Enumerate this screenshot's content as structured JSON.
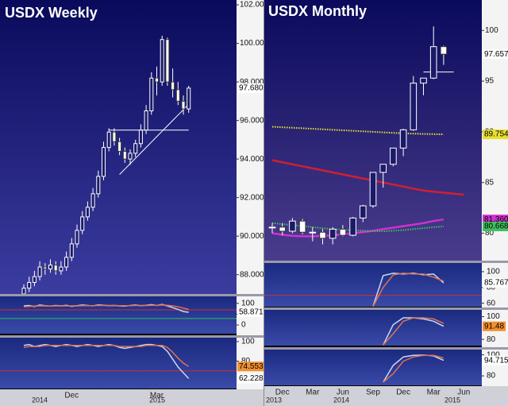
{
  "chart_data": [
    {
      "type": "candlestick",
      "title": "USDX Weekly",
      "categories": [
        null,
        null,
        null,
        null,
        null,
        null,
        null,
        null,
        null,
        "Dec",
        null,
        null,
        null,
        null,
        null,
        null,
        null,
        null,
        null,
        null,
        null,
        null,
        null,
        null,
        null,
        "Mar",
        null,
        null,
        null,
        null,
        null,
        null
      ],
      "years": [
        "2014",
        "2015"
      ],
      "open": [
        87.0,
        87.3,
        87.6,
        87.9,
        88.4,
        88.3,
        88.5,
        88.2,
        88.4,
        88.9,
        89.6,
        90.3,
        91.0,
        91.5,
        92.2,
        93.1,
        94.6,
        95.4,
        94.9,
        94.4,
        94.0,
        94.3,
        94.8,
        95.5,
        96.5,
        98.2,
        98.0,
        100.2,
        98.0,
        97.6,
        97.0,
        96.6
      ],
      "high": [
        87.5,
        87.9,
        88.2,
        88.7,
        88.6,
        88.8,
        88.7,
        88.7,
        89.2,
        89.9,
        90.6,
        91.3,
        91.8,
        92.5,
        93.4,
        94.9,
        95.6,
        95.6,
        95.1,
        94.6,
        94.5,
        95.0,
        95.8,
        96.8,
        98.5,
        98.8,
        100.4,
        100.3,
        98.7,
        98.0,
        97.3,
        97.8
      ],
      "low": [
        86.8,
        87.1,
        87.4,
        87.7,
        88.0,
        88.1,
        88.0,
        88.0,
        88.2,
        88.7,
        89.4,
        90.1,
        90.8,
        91.3,
        92.0,
        92.9,
        94.4,
        94.7,
        94.2,
        93.8,
        93.7,
        94.1,
        94.6,
        95.3,
        96.3,
        97.3,
        97.8,
        97.8,
        97.2,
        96.8,
        96.3,
        96.4
      ],
      "close": [
        87.3,
        87.6,
        87.9,
        88.4,
        88.3,
        88.5,
        88.2,
        88.4,
        88.9,
        89.6,
        90.3,
        91.0,
        91.5,
        92.2,
        93.1,
        94.6,
        95.4,
        94.9,
        94.4,
        94.0,
        94.3,
        94.8,
        95.5,
        96.5,
        98.2,
        98.0,
        100.2,
        98.0,
        97.6,
        97.0,
        96.6,
        97.68
      ],
      "last_label": "97.680",
      "ylim": [
        87,
        102.25
      ],
      "yticks": [
        {
          "value": 88,
          "label": "88.000"
        },
        {
          "value": 90,
          "label": "90.000"
        },
        {
          "value": 92,
          "label": "92.000"
        },
        {
          "value": 94,
          "label": "94.000"
        },
        {
          "value": 96,
          "label": "96.000"
        },
        {
          "value": 98,
          "label": "98.000"
        },
        {
          "value": 100,
          "label": "100.000"
        },
        {
          "value": 102,
          "label": "102.000"
        }
      ],
      "overlays": [
        {
          "color": "#ffffff",
          "style": "solid",
          "values": [
            null,
            null,
            null,
            null,
            null,
            null,
            null,
            null,
            null,
            null,
            null,
            null,
            null,
            null,
            null,
            null,
            95.5,
            95.5,
            95.5,
            95.5,
            95.5,
            95.5,
            95.5,
            95.5,
            95.5,
            95.5,
            95.5,
            95.5,
            95.5,
            95.5,
            95.5,
            95.5
          ]
        },
        {
          "color": "#ffffff",
          "style": "solid",
          "values": [
            null,
            null,
            null,
            null,
            null,
            null,
            null,
            null,
            null,
            null,
            null,
            null,
            null,
            null,
            null,
            null,
            null,
            null,
            93.2,
            93.48,
            93.76,
            94.04,
            94.32,
            94.6,
            94.88,
            95.16,
            95.44,
            95.72,
            96.0,
            96.28,
            96.56,
            96.84
          ]
        }
      ],
      "indicators": [
        {
          "ylim": [
            -40,
            132
          ],
          "yticks": [
            100,
            50,
            0
          ],
          "hlines": [
            {
              "value": 70,
              "color": "#d03030"
            },
            {
              "value": 30,
              "color": "#30c060"
            }
          ],
          "series": [
            {
              "color": "#c8d8f0",
              "values": [
                88,
                90,
                85,
                92,
                89,
                87,
                90,
                88,
                91,
                86,
                89,
                92,
                90,
                88,
                93,
                91,
                89,
                90,
                88,
                87,
                90,
                92,
                89,
                91,
                94,
                90,
                95,
                88,
                80,
                72,
                62,
                58.871
              ],
              "last_label": "58.871",
              "label_color": "#ffffff"
            },
            {
              "color": "#e07050",
              "values": [
                84,
                86,
                87,
                88,
                88,
                87,
                88,
                88,
                88,
                88,
                88,
                89,
                89,
                89,
                90,
                90,
                90,
                90,
                89,
                89,
                89,
                90,
                90,
                90,
                91,
                91,
                92,
                91,
                88,
                84,
                78,
                72
              ]
            }
          ]
        },
        {
          "ylim": [
            52,
            104
          ],
          "yticks": [
            100,
            80
          ],
          "hlines": [
            {
              "value": 70,
              "color": "#d03030"
            }
          ],
          "series": [
            {
              "color": "#c8d8f0",
              "values": [
                96,
                97,
                95,
                96,
                97,
                96,
                95,
                96,
                97,
                96,
                95,
                96,
                97,
                96,
                95,
                96,
                97,
                96,
                94,
                93,
                94,
                95,
                96,
                97,
                97,
                96,
                95,
                90,
                82,
                74,
                68,
                62.2285
              ],
              "last_label": "62.2285",
              "label_color": "#ffffff"
            },
            {
              "color": "#e07050",
              "values": [
                94,
                95,
                95,
                95,
                96,
                96,
                96,
                96,
                96,
                96,
                96,
                96,
                96,
                96,
                96,
                96,
                96,
                96,
                95,
                95,
                95,
                95,
                95,
                96,
                96,
                96,
                96,
                94,
                89,
                83,
                78,
                74.5532
              ],
              "last_label": "74.5532",
              "label_color": "#f09030"
            }
          ]
        }
      ]
    },
    {
      "type": "candlestick",
      "title": "USDX Monthly",
      "categories": [
        null,
        "Dec",
        null,
        null,
        "Mar",
        null,
        null,
        "Jun",
        null,
        null,
        "Sep",
        null,
        null,
        "Dec",
        null,
        null,
        "Mar",
        null,
        null,
        "Jun"
      ],
      "years": [
        "2013",
        "2014",
        "2015"
      ],
      "open": [
        80.6,
        80.6,
        80.2,
        81.2,
        80.1,
        80.1,
        79.5,
        80.4,
        79.8,
        81.5,
        82.7,
        86.0,
        86.8,
        88.4,
        90.2,
        94.8,
        95.3,
        98.4,
        null,
        null
      ],
      "high": [
        81.0,
        81.0,
        81.5,
        81.4,
        80.6,
        80.4,
        80.6,
        80.8,
        81.6,
        82.8,
        86.0,
        86.8,
        88.4,
        90.3,
        95.5,
        95.3,
        100.4,
        98.5,
        null,
        null
      ],
      "low": [
        80.0,
        79.8,
        80.0,
        79.9,
        79.2,
        78.9,
        78.9,
        79.7,
        79.7,
        81.1,
        82.5,
        84.5,
        86.6,
        87.6,
        90.1,
        93.6,
        95.2,
        96.6,
        null,
        null
      ],
      "close": [
        80.6,
        80.2,
        81.2,
        80.1,
        80.1,
        79.5,
        80.4,
        79.8,
        81.5,
        82.7,
        86.0,
        86.8,
        88.4,
        90.2,
        94.8,
        95.3,
        98.4,
        97.657,
        null,
        null
      ],
      "last_label": "97.657",
      "ylim": [
        77.3,
        103
      ],
      "yticks": [
        80,
        85,
        90,
        95,
        100
      ],
      "overlays": [
        {
          "color": "#e8e030",
          "style": "dotted",
          "values": [
            90.5,
            90.45,
            90.4,
            90.35,
            90.3,
            90.25,
            90.2,
            90.15,
            90.1,
            90.05,
            90.0,
            89.95,
            89.9,
            89.85,
            89.82,
            89.79,
            89.77,
            89.754,
            null,
            null
          ],
          "last_label": "89.754"
        },
        {
          "color": "#d02030",
          "style": "solid",
          "values": [
            87.2,
            87.0,
            86.8,
            86.6,
            86.4,
            86.2,
            86.0,
            85.8,
            85.6,
            85.4,
            85.2,
            85.0,
            84.8,
            84.6,
            84.4,
            84.2,
            84.1,
            84.0,
            83.9,
            83.8
          ]
        },
        {
          "color": "#d030d0",
          "style": "solid",
          "values": [
            80.0,
            79.85,
            79.75,
            79.7,
            79.7,
            79.75,
            79.8,
            79.9,
            80.0,
            80.1,
            80.25,
            80.4,
            80.55,
            80.7,
            80.85,
            81.0,
            81.2,
            81.36,
            null,
            null
          ],
          "last_label": "81.360"
        },
        {
          "color": "#40c060",
          "style": "dotted",
          "values": [
            81.0,
            80.9,
            80.8,
            80.7,
            80.6,
            80.5,
            80.4,
            80.35,
            80.3,
            80.25,
            80.2,
            80.2,
            80.25,
            80.3,
            80.4,
            80.5,
            80.6,
            80.668,
            null,
            null
          ],
          "last_label": "80.668"
        },
        {
          "color": "#ffffff",
          "style": "solid",
          "values": [
            null,
            null,
            null,
            null,
            null,
            null,
            null,
            null,
            null,
            null,
            null,
            null,
            null,
            null,
            null,
            95.9,
            95.9,
            95.9,
            95.9,
            null
          ]
        }
      ],
      "indicators": [
        {
          "ylim": [
            55.6,
            111
          ],
          "yticks": [
            100,
            80,
            60
          ],
          "hlines": [
            {
              "value": 70,
              "color": "#d03030"
            }
          ],
          "series": [
            {
              "color": "#c8d8f0",
              "values": [
                null,
                null,
                null,
                null,
                null,
                null,
                null,
                null,
                null,
                null,
                56,
                95,
                98,
                97,
                98,
                96,
                97,
                85.767,
                null,
                null
              ],
              "last_label": "85.767",
              "label_color": "#ffffff"
            },
            {
              "color": "#e07050",
              "values": [
                null,
                null,
                null,
                null,
                null,
                null,
                null,
                null,
                null,
                null,
                56,
                80,
                96,
                98,
                97,
                97,
                93,
                88,
                null,
                null
              ]
            }
          ]
        },
        {
          "ylim": [
            74.5,
            106
          ],
          "yticks": [
            100,
            80
          ],
          "hlines": [],
          "series": [
            {
              "color": "#c8d8f0",
              "values": [
                null,
                null,
                null,
                null,
                null,
                null,
                null,
                null,
                null,
                null,
                null,
                75,
                93,
                99,
                99,
                98,
                96,
                91.48,
                null,
                null
              ],
              "last_label": "91.48",
              "label_color": "#f09030"
            },
            {
              "color": "#e07050",
              "values": [
                null,
                null,
                null,
                null,
                null,
                null,
                null,
                null,
                null,
                null,
                null,
                75,
                85,
                96,
                99,
                99,
                98,
                94,
                null,
                null
              ]
            }
          ]
        },
        {
          "ylim": [
            71,
            105
          ],
          "yticks": [
            100,
            80
          ],
          "hlines": [],
          "series": [
            {
              "color": "#c8d8f0",
              "values": [
                null,
                null,
                null,
                null,
                null,
                null,
                null,
                null,
                null,
                null,
                null,
                74,
                90,
                98,
                99.5,
                99.8,
                99,
                94.715,
                null,
                null
              ],
              "last_label": "94.715",
              "label_color": "#ffffff"
            },
            {
              "color": "#e07050",
              "values": [
                null,
                null,
                null,
                null,
                null,
                null,
                null,
                null,
                null,
                null,
                null,
                74,
                82,
                94,
                98,
                99.5,
                99.5,
                97,
                null,
                null
              ]
            }
          ]
        }
      ]
    }
  ]
}
